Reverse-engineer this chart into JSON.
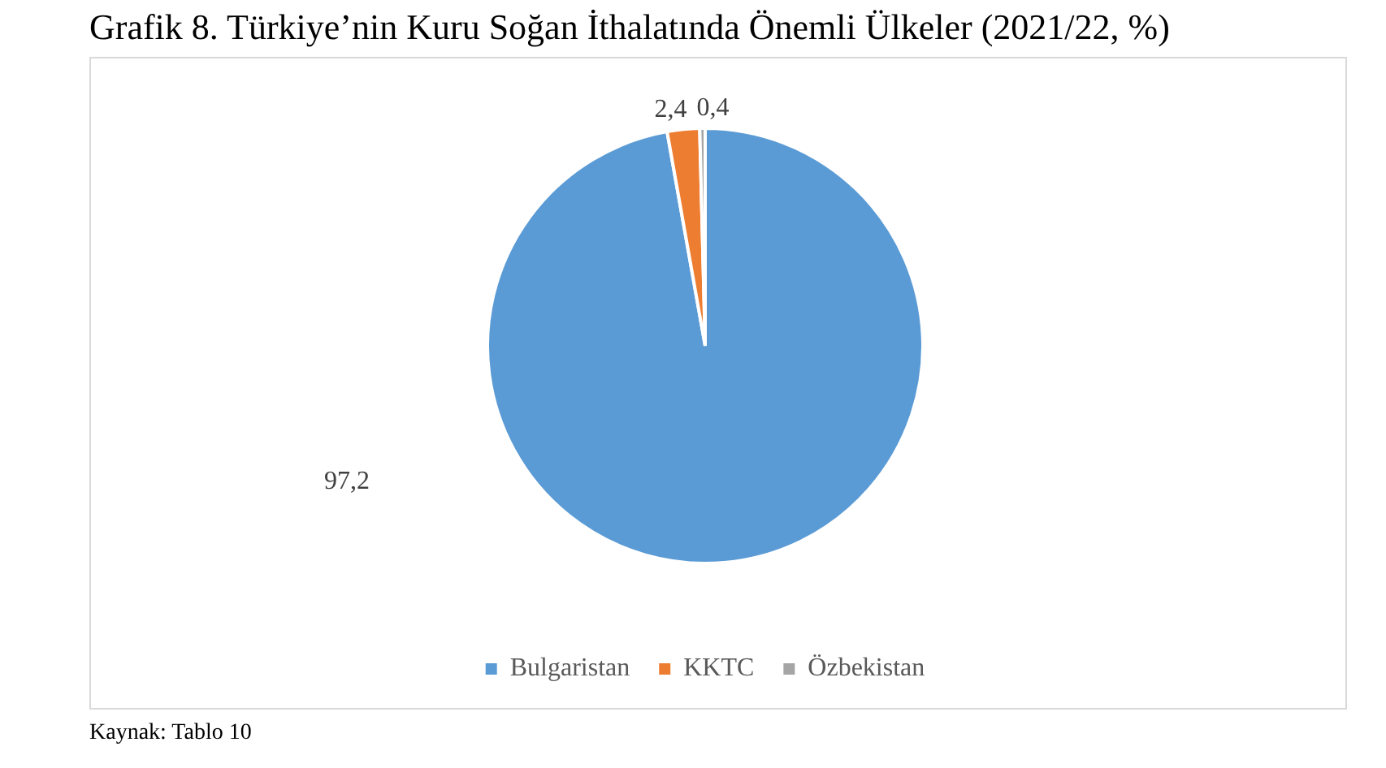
{
  "chart_data": {
    "type": "pie",
    "title": "Grafik 8. Türkiye’nin Kuru Soğan İthalatında Önemli Ülkeler (2021/22, %)",
    "categories": [
      "Bulgaristan",
      "KKTC",
      "Özbekistan"
    ],
    "values": [
      97.2,
      2.4,
      0.4
    ],
    "colors": [
      "#5b9bd5",
      "#ed7d31",
      "#a5a5a5"
    ],
    "value_labels": [
      "97,2",
      "2,4",
      "0,4"
    ],
    "legend": "bottom",
    "annotations": [
      "Kaynak: Tablo 10"
    ]
  }
}
